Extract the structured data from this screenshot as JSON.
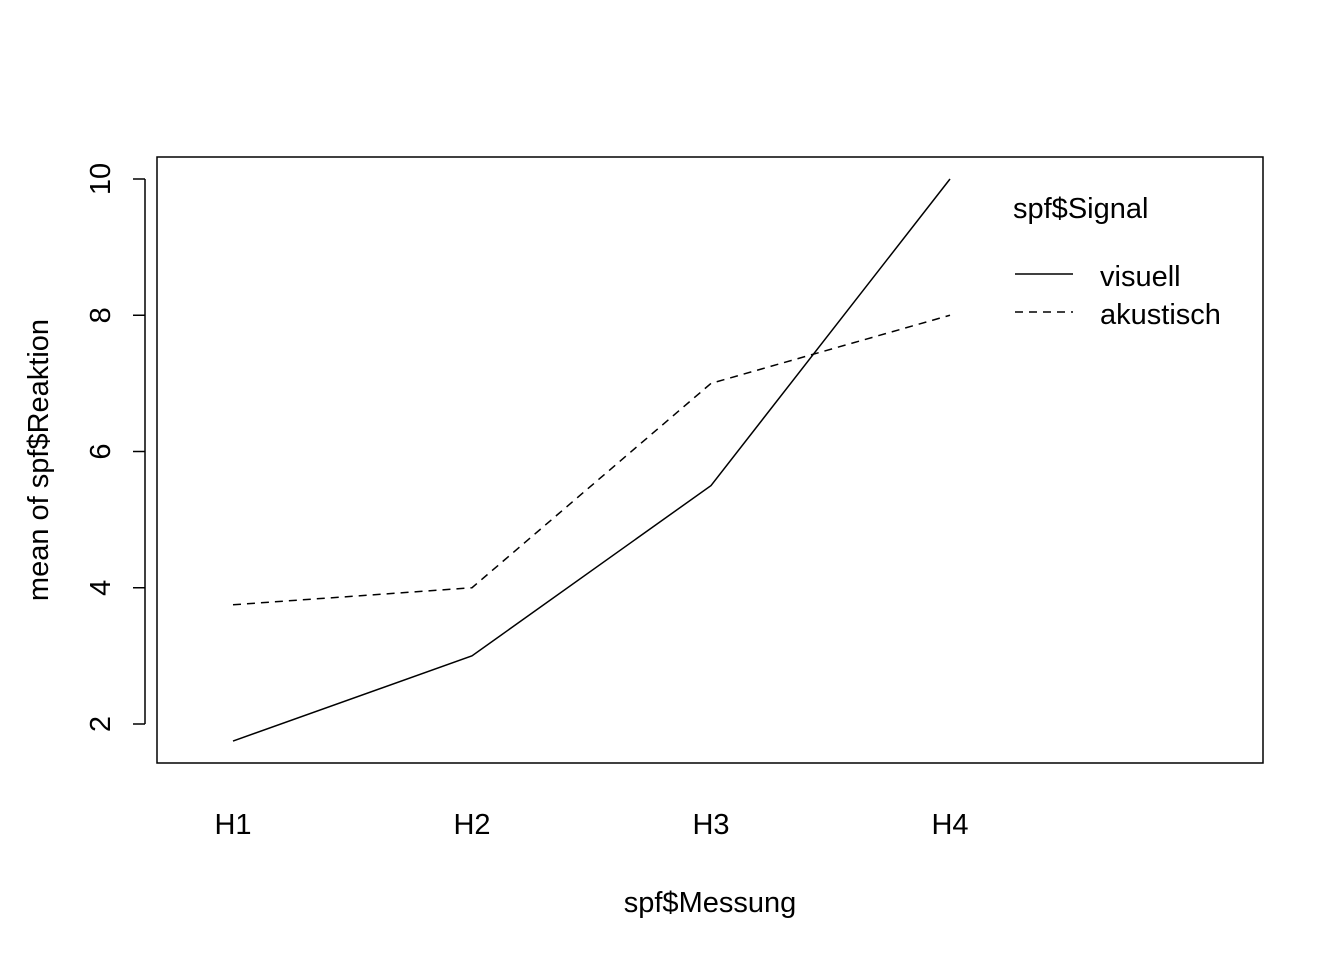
{
  "chart_data": {
    "type": "line",
    "title": "",
    "xlabel": "spf$Messung",
    "ylabel": "mean of  spf$Reaktion",
    "categories": [
      "H1",
      "H2",
      "H3",
      "H4"
    ],
    "yticks": [
      2,
      4,
      6,
      8,
      10
    ],
    "ylim": [
      1.4,
      10.3
    ],
    "legend": {
      "title": "spf$Signal",
      "position": "top-right"
    },
    "series": [
      {
        "name": "visuell",
        "style": "solid",
        "values": [
          1.75,
          3.0,
          5.5,
          10.0
        ]
      },
      {
        "name": "akustisch",
        "style": "dashed",
        "values": [
          3.75,
          4.0,
          7.0,
          8.0
        ]
      }
    ],
    "colors": {
      "line": "#000000",
      "background": "#ffffff"
    }
  }
}
